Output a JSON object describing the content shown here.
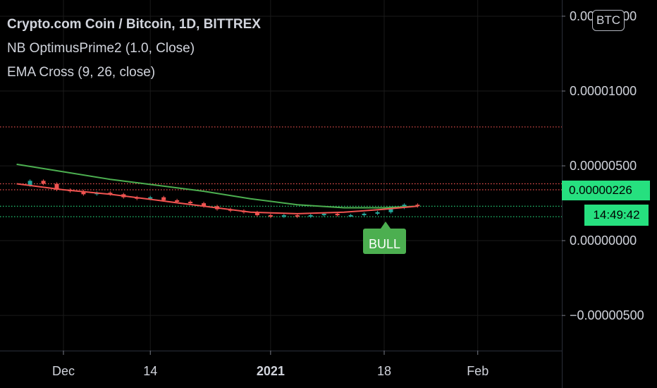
{
  "legend": {
    "title": "Crypto.com Coin / Bitcoin, 1D, BITTREX",
    "indicator1": "NB OptimusPrime2 (1.0, Close)",
    "indicator2": "EMA Cross (9, 26, close)"
  },
  "currency_badge": "BTC",
  "last_price": "0.00000226",
  "countdown": "14:49:42",
  "signal_label": "BULL",
  "colors": {
    "background": "#000000",
    "up_candle": "#26a69a",
    "down_candle": "#ef5350",
    "ema_fast": "#ef5350",
    "ema_slow": "#4caf50",
    "price_tag": "#26e07f",
    "signal": "#4caf50",
    "level_red": "#ef5350",
    "level_green": "#26e07f"
  },
  "chart_data": {
    "type": "line",
    "y_tick_labels": [
      "0.00001500",
      "0.00001000",
      "0.00000500",
      "0.00000000",
      "−0.00000500"
    ],
    "y_ticks": [
      1.5e-05,
      1e-05,
      5e-06,
      0,
      -5e-06
    ],
    "x_tick_labels": [
      "Dec",
      "14",
      "2021",
      "18",
      "Feb"
    ],
    "x_ticks": [
      "2020-12-01",
      "2020-12-14",
      "2021-01-01",
      "2021-01-18",
      "2021-02-01"
    ],
    "ylim": [
      -9e-06,
      1.58e-05
    ],
    "grid": true,
    "horizontal_levels": [
      {
        "value": 7.6e-06,
        "color": "red"
      },
      {
        "value": 3.8e-06,
        "color": "red"
      },
      {
        "value": 3.4e-06,
        "color": "red"
      },
      {
        "value": 2.3e-06,
        "color": "green"
      },
      {
        "value": 1.6e-06,
        "color": "green"
      }
    ],
    "series": [
      {
        "line": "ema_slow",
        "x": [
          "2020-11-24",
          "2020-12-01",
          "2020-12-08",
          "2020-12-15",
          "2020-12-22",
          "2020-12-29",
          "2021-01-05",
          "2021-01-12",
          "2021-01-18",
          "2021-01-23"
        ],
        "values": [
          5.1e-06,
          4.6e-06,
          4.1e-06,
          3.7e-06,
          3.3e-06,
          2.8e-06,
          2.4e-06,
          2.2e-06,
          2.2e-06,
          2.3e-06
        ]
      },
      {
        "line": "ema_fast",
        "x": [
          "2020-11-24",
          "2020-12-01",
          "2020-12-08",
          "2020-12-15",
          "2020-12-22",
          "2020-12-29",
          "2021-01-05",
          "2021-01-12",
          "2021-01-18",
          "2021-01-23"
        ],
        "values": [
          3.8e-06,
          3.4e-06,
          3.1e-06,
          2.7e-06,
          2.3e-06,
          1.9e-06,
          1.8e-06,
          1.9e-06,
          2.1e-06,
          2.3e-06
        ]
      },
      {
        "line": "close",
        "x": [
          "2020-11-24",
          "2020-11-26",
          "2020-11-28",
          "2020-11-30",
          "2020-12-02",
          "2020-12-04",
          "2020-12-06",
          "2020-12-08",
          "2020-12-10",
          "2020-12-12",
          "2020-12-14",
          "2020-12-16",
          "2020-12-18",
          "2020-12-20",
          "2020-12-22",
          "2020-12-24",
          "2020-12-26",
          "2020-12-28",
          "2020-12-30",
          "2021-01-01",
          "2021-01-03",
          "2021-01-05",
          "2021-01-07",
          "2021-01-09",
          "2021-01-11",
          "2021-01-13",
          "2021-01-15",
          "2021-01-17",
          "2021-01-19",
          "2021-01-21",
          "2021-01-23"
        ],
        "values": [
          3.7e-06,
          4e-06,
          3.8e-06,
          3.4e-06,
          3.3e-06,
          3.1e-06,
          3.2e-06,
          3.1e-06,
          2.9e-06,
          2.8e-06,
          2.9e-06,
          2.7e-06,
          2.6e-06,
          2.5e-06,
          2.3e-06,
          2.1e-06,
          2e-06,
          1.9e-06,
          1.7e-06,
          1.6e-06,
          1.7e-06,
          1.6e-06,
          1.7e-06,
          1.8e-06,
          1.7e-06,
          1.7e-06,
          1.8e-06,
          1.9e-06,
          2.2e-06,
          2.4e-06,
          2.3e-06
        ]
      }
    ]
  }
}
